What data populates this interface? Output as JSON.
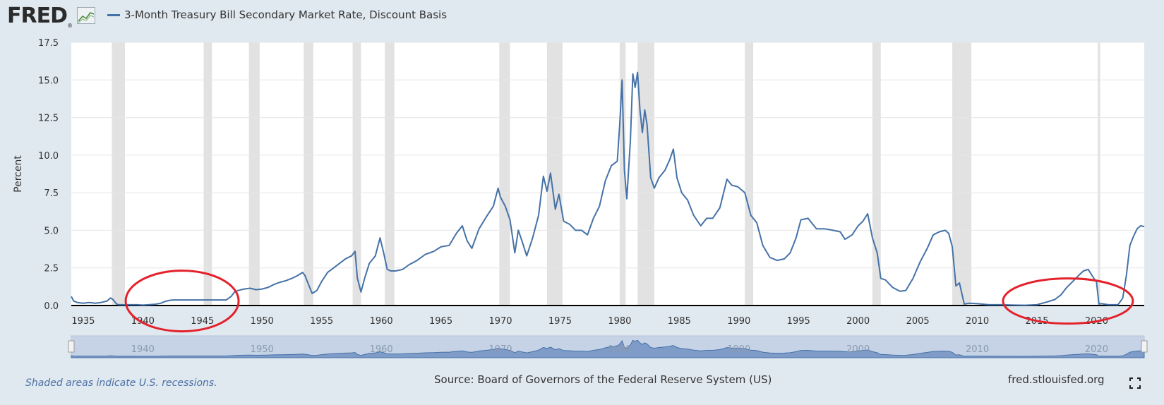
{
  "header": {
    "logo_text": "FRED",
    "logo_reg": "®",
    "legend_label": "3-Month Treasury Bill Secondary Market Rate, Discount Basis"
  },
  "footer": {
    "recession_note": "Shaded areas indicate U.S. recessions.",
    "source": "Source: Board of Governors of the Federal Reserve System (US)",
    "site": "fred.stlouisfed.org"
  },
  "icons": {
    "logo": "line-chart-icon",
    "fullscreen": "fullscreen-icon"
  },
  "colors": {
    "line": "#4572a7",
    "recession": "#e2e2e2",
    "annotation": "#e3222c",
    "background": "#e1e9f0"
  },
  "chart_data": {
    "type": "line",
    "title": "",
    "xlabel": "",
    "ylabel": "Percent",
    "ylim": [
      0,
      17.5
    ],
    "xlim": [
      1934,
      2024
    ],
    "yticks": [
      "0.0",
      "2.5",
      "5.0",
      "7.5",
      "10.0",
      "12.5",
      "15.0",
      "17.5"
    ],
    "xticks": [
      "1935",
      "1940",
      "1945",
      "1950",
      "1955",
      "1960",
      "1965",
      "1970",
      "1975",
      "1980",
      "1985",
      "1990",
      "1995",
      "2000",
      "2005",
      "2010",
      "2015",
      "2020"
    ],
    "navigator_labels": [
      "1940",
      "1950",
      "1960",
      "1970",
      "1980",
      "1990",
      "2000",
      "2010",
      "2020"
    ],
    "grid": true,
    "legend": "top-left",
    "recessions": [
      [
        1937.4,
        1938.5
      ],
      [
        1945.1,
        1945.8
      ],
      [
        1948.9,
        1949.8
      ],
      [
        1953.5,
        1954.3
      ],
      [
        1957.6,
        1958.3
      ],
      [
        1960.3,
        1961.1
      ],
      [
        1969.9,
        1970.8
      ],
      [
        1973.9,
        1975.2
      ],
      [
        1980.0,
        1980.5
      ],
      [
        1981.5,
        1982.9
      ],
      [
        1990.5,
        1991.2
      ],
      [
        2001.2,
        2001.9
      ],
      [
        2007.9,
        2009.5
      ],
      [
        2020.1,
        2020.3
      ]
    ],
    "annotations": [
      {
        "shape": "ellipse",
        "center": [
          1943.3,
          0.3
        ],
        "label": ""
      },
      {
        "shape": "ellipse",
        "center": [
          2017.6,
          0.3
        ],
        "label": ""
      }
    ],
    "series": [
      {
        "name": "3-Month Treasury Bill Secondary Market Rate, Discount Basis",
        "x": [
          1934.0,
          1934.2,
          1934.5,
          1935.0,
          1935.5,
          1936.0,
          1936.5,
          1937.0,
          1937.3,
          1937.5,
          1937.8,
          1938.0,
          1938.5,
          1939.0,
          1939.5,
          1940.0,
          1940.5,
          1941.0,
          1941.5,
          1941.8,
          1942.0,
          1942.3,
          1942.6,
          1943.0,
          1944.0,
          1945.0,
          1946.0,
          1947.0,
          1947.4,
          1947.7,
          1948.0,
          1948.5,
          1949.0,
          1949.5,
          1950.0,
          1950.5,
          1951.0,
          1951.5,
          1952.0,
          1952.5,
          1953.0,
          1953.4,
          1953.6,
          1953.9,
          1954.2,
          1954.6,
          1955.0,
          1955.5,
          1956.0,
          1956.5,
          1957.0,
          1957.5,
          1957.8,
          1958.0,
          1958.3,
          1958.6,
          1959.0,
          1959.5,
          1959.9,
          1960.2,
          1960.5,
          1960.8,
          1961.2,
          1961.8,
          1962.3,
          1963.0,
          1963.7,
          1964.4,
          1965.0,
          1965.7,
          1966.3,
          1966.8,
          1967.2,
          1967.6,
          1968.2,
          1968.9,
          1969.4,
          1969.8,
          1970.0,
          1970.4,
          1970.8,
          1971.2,
          1971.5,
          1971.8,
          1972.2,
          1972.7,
          1973.2,
          1973.6,
          1973.9,
          1974.2,
          1974.6,
          1974.9,
          1975.3,
          1975.8,
          1976.3,
          1976.8,
          1977.3,
          1977.8,
          1978.3,
          1978.8,
          1979.3,
          1979.8,
          1980.0,
          1980.2,
          1980.4,
          1980.6,
          1980.9,
          1981.1,
          1981.3,
          1981.5,
          1981.7,
          1981.9,
          1982.1,
          1982.3,
          1982.6,
          1982.9,
          1983.3,
          1983.8,
          1984.2,
          1984.5,
          1984.8,
          1985.2,
          1985.7,
          1986.2,
          1986.8,
          1987.3,
          1987.8,
          1988.4,
          1989.0,
          1989.4,
          1989.9,
          1990.5,
          1991.0,
          1991.5,
          1992.0,
          1992.6,
          1993.2,
          1993.8,
          1994.3,
          1994.8,
          1995.2,
          1995.8,
          1996.5,
          1997.2,
          1997.9,
          1998.5,
          1998.9,
          1999.5,
          2000.0,
          2000.4,
          2000.8,
          2001.2,
          2001.6,
          2001.9,
          2002.3,
          2002.9,
          2003.5,
          2004.0,
          2004.6,
          2005.2,
          2005.8,
          2006.3,
          2006.8,
          2007.3,
          2007.6,
          2007.9,
          2008.2,
          2008.5,
          2008.9,
          2009.3,
          2010.0,
          2011.0,
          2012.0,
          2013.0,
          2014.0,
          2015.0,
          2015.9,
          2016.5,
          2017.0,
          2017.5,
          2018.0,
          2018.5,
          2018.9,
          2019.3,
          2019.7,
          2020.0,
          2020.2,
          2020.4,
          2021.0,
          2021.8,
          2022.2,
          2022.5,
          2022.8,
          2023.1,
          2023.4,
          2023.7,
          2024.0
        ],
        "values": [
          0.6,
          0.3,
          0.2,
          0.15,
          0.2,
          0.15,
          0.2,
          0.3,
          0.5,
          0.4,
          0.1,
          0.05,
          0.05,
          0.05,
          0.05,
          0.03,
          0.05,
          0.08,
          0.15,
          0.25,
          0.3,
          0.35,
          0.37,
          0.37,
          0.37,
          0.37,
          0.37,
          0.37,
          0.6,
          0.9,
          1.0,
          1.1,
          1.15,
          1.05,
          1.1,
          1.2,
          1.4,
          1.55,
          1.65,
          1.8,
          2.0,
          2.2,
          2.0,
          1.4,
          0.8,
          1.0,
          1.6,
          2.2,
          2.5,
          2.8,
          3.1,
          3.3,
          3.6,
          1.8,
          0.9,
          1.8,
          2.8,
          3.3,
          4.5,
          3.5,
          2.4,
          2.3,
          2.3,
          2.4,
          2.7,
          3.0,
          3.4,
          3.6,
          3.9,
          4.0,
          4.8,
          5.3,
          4.3,
          3.8,
          5.1,
          6.0,
          6.6,
          7.8,
          7.2,
          6.6,
          5.7,
          3.5,
          5.0,
          4.3,
          3.3,
          4.5,
          6.0,
          8.6,
          7.6,
          8.8,
          6.4,
          7.4,
          5.6,
          5.4,
          5.0,
          5.0,
          4.7,
          5.8,
          6.6,
          8.3,
          9.3,
          9.6,
          12.0,
          15.0,
          9.0,
          7.1,
          11.0,
          15.4,
          14.5,
          15.5,
          13.0,
          11.5,
          13.0,
          12.0,
          8.5,
          7.8,
          8.5,
          9.0,
          9.7,
          10.4,
          8.5,
          7.5,
          7.0,
          6.0,
          5.3,
          5.8,
          5.8,
          6.5,
          8.4,
          8.0,
          7.9,
          7.5,
          6.0,
          5.5,
          4.0,
          3.2,
          3.0,
          3.1,
          3.5,
          4.5,
          5.7,
          5.8,
          5.1,
          5.1,
          5.0,
          4.9,
          4.4,
          4.7,
          5.3,
          5.6,
          6.1,
          4.5,
          3.5,
          1.8,
          1.7,
          1.2,
          0.95,
          1.0,
          1.8,
          2.9,
          3.8,
          4.7,
          4.9,
          5.0,
          4.8,
          3.9,
          1.3,
          1.5,
          0.1,
          0.15,
          0.12,
          0.05,
          0.05,
          0.03,
          0.02,
          0.05,
          0.25,
          0.4,
          0.7,
          1.2,
          1.6,
          2.0,
          2.3,
          2.4,
          1.9,
          1.55,
          0.1,
          0.12,
          0.05,
          0.05,
          0.5,
          2.0,
          4.0,
          4.6,
          5.1,
          5.3,
          5.25
        ]
      }
    ]
  }
}
